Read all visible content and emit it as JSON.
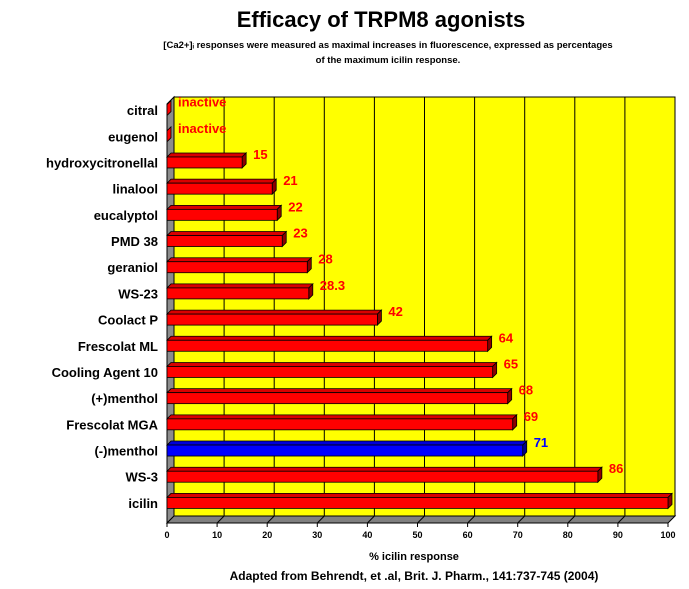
{
  "chart_data": {
    "type": "bar",
    "orientation": "horizontal",
    "title": "Efficacy of TRPM8 agonists",
    "subtitle_lines": [
      "[Ca2+]ᵢ responses were measured as maximal increases in fluorescence, expressed as percentages",
      "of the maximum icilin response."
    ],
    "xlabel": "% icilin response",
    "source": "Adapted from Behrendt, et .al, Brit. J. Pharm., 141:737-745 (2004)",
    "xlim": [
      0,
      100
    ],
    "xticks": [
      "0",
      "10",
      "20",
      "30",
      "40",
      "50",
      "60",
      "70",
      "80",
      "90",
      "100"
    ],
    "grid": true,
    "legend": "none",
    "categories": [
      "citral",
      "eugenol",
      "hydroxycitronellal",
      "linalool",
      "eucalyptol",
      "PMD 38",
      "geraniol",
      "WS-23",
      "Coolact P",
      "Frescolat ML",
      "Cooling Agent 10",
      "(+)menthol",
      "Frescolat MGA",
      "(-)menthol",
      "WS-3",
      "icilin"
    ],
    "values": [
      0,
      0,
      15,
      21,
      22,
      23,
      28,
      28.3,
      42,
      64,
      65,
      68,
      69,
      71,
      86,
      100
    ],
    "value_labels": [
      "inactive",
      "inactive",
      "15",
      "21",
      "22",
      "23",
      "28",
      "28.3",
      "42",
      "64",
      "65",
      "68",
      "69",
      "71",
      "86",
      ""
    ],
    "highlight_index": 13,
    "colors": {
      "bar": "#ff0000",
      "bar_highlight": "#0000ff",
      "plot_background": "#ffff00",
      "label": "#ff0000",
      "label_highlight": "#0000ff",
      "grid": "#000000"
    }
  }
}
